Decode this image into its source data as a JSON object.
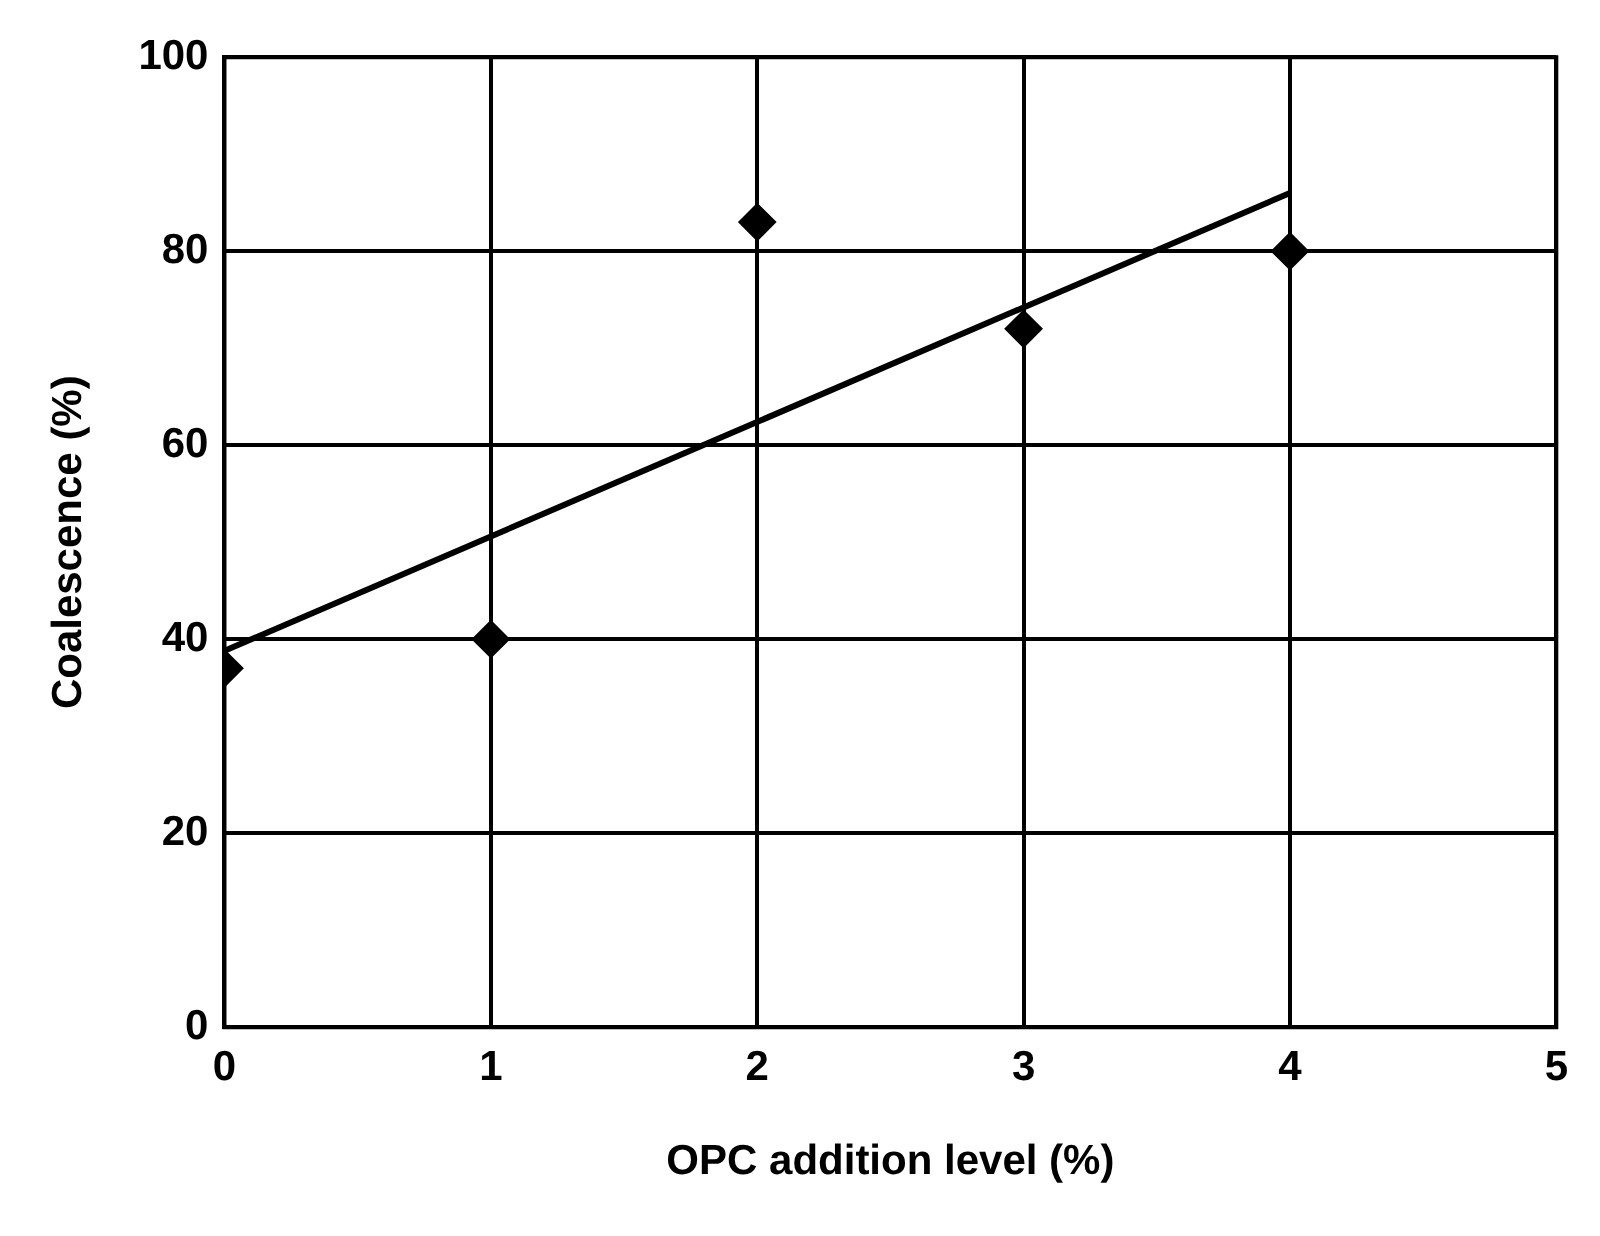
{
  "chart_data": {
    "type": "scatter",
    "xlabel": "OPC addition level (%)",
    "ylabel": "Coalescence (%)",
    "xlim": [
      0,
      5
    ],
    "xticks": [
      0,
      1,
      2,
      3,
      4,
      5
    ],
    "ylim": [
      0,
      100
    ],
    "yticks": [
      0,
      20,
      40,
      60,
      80,
      100
    ],
    "grid": true,
    "marker": "diamond",
    "series": [
      {
        "x": [
          0,
          1,
          2,
          3,
          4
        ],
        "values": [
          37,
          40,
          83,
          72,
          80
        ],
        "color": "#000000"
      },
      {
        "type": "line",
        "x": [
          0,
          4
        ],
        "values": [
          38.8,
          86
        ],
        "color": "#000000",
        "marker": "none"
      }
    ]
  }
}
